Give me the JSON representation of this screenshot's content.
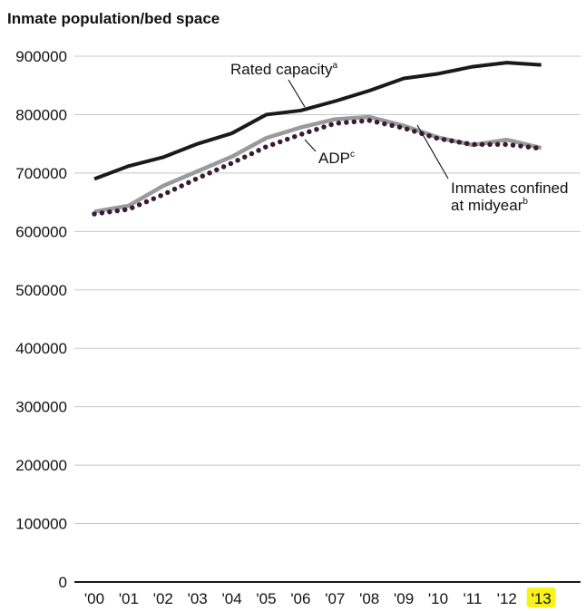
{
  "chart_data": {
    "type": "line",
    "title": "Inmate population/bed space",
    "xlabel": "",
    "ylabel": "",
    "categories": [
      "'00",
      "'01",
      "'02",
      "'03",
      "'04",
      "'05",
      "'06",
      "'07",
      "'08",
      "'09",
      "'10",
      "'11",
      "'12",
      "'13"
    ],
    "highlighted_category": "'13",
    "ylim": [
      0,
      900000
    ],
    "yticks": [
      "0",
      "100000",
      "200000",
      "300000",
      "400000",
      "500000",
      "600000",
      "700000",
      "800000",
      "900000"
    ],
    "grid": "horizontal",
    "series": [
      {
        "name": "Rated capacity",
        "note_mark": "a",
        "style": "solid-black",
        "color": "#1a1a1a",
        "values": [
          690000,
          712000,
          727000,
          750000,
          768000,
          800000,
          807000,
          823000,
          841000,
          862000,
          870000,
          882000,
          889000,
          885000
        ]
      },
      {
        "name": "Inmates confined at midyear",
        "name_lines": [
          "Inmates confined",
          "at midyear"
        ],
        "note_mark": "b",
        "style": "solid-gray",
        "color": "#9a9a9a",
        "values": [
          634000,
          644000,
          678000,
          703000,
          728000,
          760000,
          778000,
          792000,
          796000,
          781000,
          761000,
          748000,
          757000,
          743000
        ]
      },
      {
        "name": "ADP",
        "note_mark": "c",
        "style": "dotted",
        "color": "#3a1a34",
        "values": [
          630000,
          638000,
          663000,
          691000,
          717000,
          745000,
          766000,
          785000,
          790000,
          777000,
          759000,
          749000,
          749000,
          742000
        ]
      }
    ]
  },
  "colors": {
    "highlight": "#f7f21a",
    "gridline": "#c8c8c8",
    "axis": "#1a1a1a"
  }
}
